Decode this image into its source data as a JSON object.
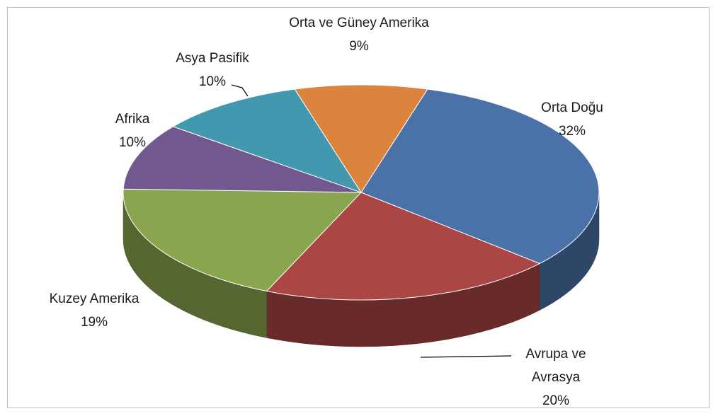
{
  "chart_data": {
    "type": "pie3d",
    "categories": [
      "Orta Doğu",
      "Avrupa ve Avrasya",
      "Kuzey Amerika",
      "Afrika",
      "Asya Pasifik",
      "Orta ve Güney Amerika"
    ],
    "values": [
      32,
      20,
      19,
      10,
      10,
      9
    ],
    "value_labels": [
      "32%",
      "20%",
      "19%",
      "10%",
      "10%",
      "9%"
    ],
    "colors": [
      "#4a72a8",
      "#aa4644",
      "#89a54e",
      "#71588f",
      "#4198af",
      "#db843d"
    ]
  }
}
